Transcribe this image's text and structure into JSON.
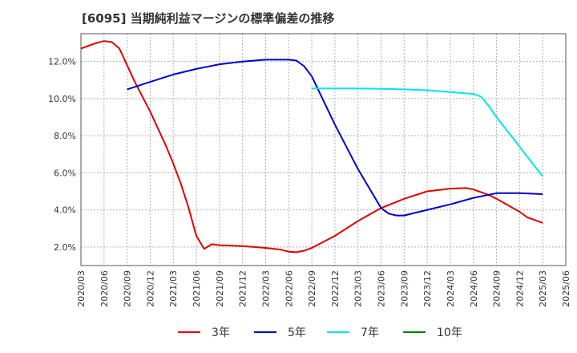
{
  "chart_data": {
    "type": "line",
    "title": "[6095]  当期純利益マージンの標準偏差の推移",
    "xlabel": "",
    "ylabel": "",
    "x_ticks": [
      "2020/03",
      "2020/06",
      "2020/09",
      "2020/12",
      "2021/03",
      "2021/06",
      "2021/09",
      "2021/12",
      "2022/03",
      "2022/06",
      "2022/09",
      "2022/12",
      "2023/03",
      "2023/06",
      "2023/09",
      "2023/12",
      "2024/03",
      "2024/06",
      "2024/09",
      "2024/12",
      "2025/03",
      "2025/06"
    ],
    "y_ticks": [
      "2.0%",
      "4.0%",
      "6.0%",
      "8.0%",
      "10.0%",
      "12.0%"
    ],
    "y_tick_values": [
      2,
      4,
      6,
      8,
      10,
      12
    ],
    "ylim": [
      1.0,
      13.5
    ],
    "grid": true,
    "legend_position": "bottom",
    "series": [
      {
        "name": "3年",
        "color": "#e00000",
        "points": [
          [
            "2020/03",
            12.7
          ],
          [
            "2020/04",
            12.85
          ],
          [
            "2020/05",
            13.0
          ],
          [
            "2020/06",
            13.1
          ],
          [
            "2020/07",
            13.05
          ],
          [
            "2020/08",
            12.7
          ],
          [
            "2020/09",
            11.8
          ],
          [
            "2020/10",
            10.9
          ],
          [
            "2020/11",
            10.1
          ],
          [
            "2020/12",
            9.3
          ],
          [
            "2021/01",
            8.4
          ],
          [
            "2021/02",
            7.5
          ],
          [
            "2021/03",
            6.5
          ],
          [
            "2021/04",
            5.4
          ],
          [
            "2021/05",
            4.1
          ],
          [
            "2021/06",
            2.6
          ],
          [
            "2021/07",
            1.9
          ],
          [
            "2021/08",
            2.15
          ],
          [
            "2021/09",
            2.1
          ],
          [
            "2021/12",
            2.05
          ],
          [
            "2022/03",
            1.95
          ],
          [
            "2022/05",
            1.85
          ],
          [
            "2022/06",
            1.75
          ],
          [
            "2022/07",
            1.72
          ],
          [
            "2022/08",
            1.8
          ],
          [
            "2022/09",
            1.95
          ],
          [
            "2022/12",
            2.6
          ],
          [
            "2023/03",
            3.4
          ],
          [
            "2023/06",
            4.1
          ],
          [
            "2023/09",
            4.6
          ],
          [
            "2023/12",
            5.0
          ],
          [
            "2024/03",
            5.15
          ],
          [
            "2024/05",
            5.18
          ],
          [
            "2024/06",
            5.1
          ],
          [
            "2024/08",
            4.8
          ],
          [
            "2024/09",
            4.6
          ],
          [
            "2024/12",
            3.9
          ],
          [
            "2025/01",
            3.6
          ],
          [
            "2025/03",
            3.3
          ]
        ]
      },
      {
        "name": "5年",
        "color": "#0000cc",
        "points": [
          [
            "2020/09",
            10.5
          ],
          [
            "2020/12",
            10.9
          ],
          [
            "2021/03",
            11.3
          ],
          [
            "2021/06",
            11.6
          ],
          [
            "2021/09",
            11.85
          ],
          [
            "2021/12",
            12.0
          ],
          [
            "2022/03",
            12.1
          ],
          [
            "2022/06",
            12.1
          ],
          [
            "2022/07",
            12.05
          ],
          [
            "2022/08",
            11.75
          ],
          [
            "2022/09",
            11.2
          ],
          [
            "2022/12",
            8.6
          ],
          [
            "2023/03",
            6.2
          ],
          [
            "2023/06",
            4.1
          ],
          [
            "2023/07",
            3.8
          ],
          [
            "2023/08",
            3.7
          ],
          [
            "2023/09",
            3.7
          ],
          [
            "2023/12",
            4.0
          ],
          [
            "2024/03",
            4.3
          ],
          [
            "2024/06",
            4.65
          ],
          [
            "2024/09",
            4.9
          ],
          [
            "2024/12",
            4.9
          ],
          [
            "2025/03",
            4.85
          ]
        ]
      },
      {
        "name": "7年",
        "color": "#00e5ee",
        "points": [
          [
            "2022/09",
            10.55
          ],
          [
            "2022/12",
            10.55
          ],
          [
            "2023/03",
            10.55
          ],
          [
            "2023/06",
            10.53
          ],
          [
            "2023/09",
            10.5
          ],
          [
            "2023/12",
            10.45
          ],
          [
            "2024/03",
            10.35
          ],
          [
            "2024/06",
            10.25
          ],
          [
            "2024/07",
            10.1
          ],
          [
            "2024/08",
            9.6
          ],
          [
            "2024/09",
            9.0
          ],
          [
            "2024/12",
            7.4
          ],
          [
            "2025/03",
            5.8
          ]
        ]
      },
      {
        "name": "10年",
        "color": "#008000",
        "points": []
      }
    ]
  }
}
